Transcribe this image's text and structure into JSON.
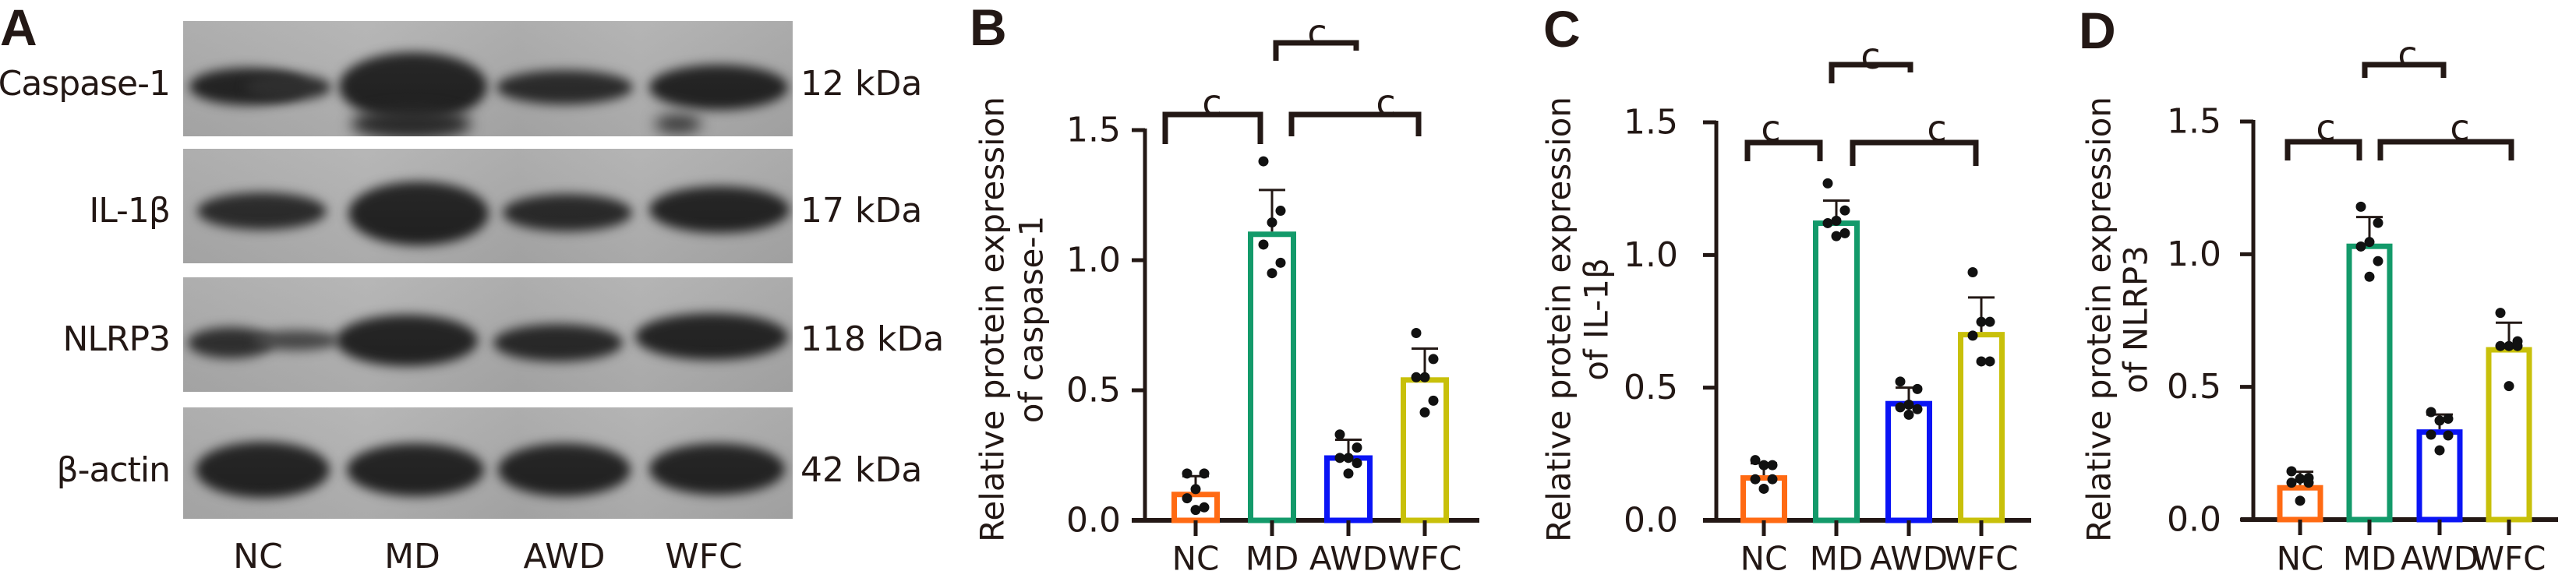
{
  "panel_a": {
    "letter": "A",
    "rows": [
      {
        "protein": "Caspase-1",
        "mw": "12 kDa"
      },
      {
        "protein": "IL-1β",
        "mw": "17 kDa"
      },
      {
        "protein": "NLRP3",
        "mw": "118 kDa"
      },
      {
        "protein": "β-actin",
        "mw": "42 kDa"
      }
    ],
    "lanes": [
      "NC",
      "MD",
      "AWD",
      "WFC"
    ]
  },
  "colors": {
    "NC": "#ff6a13",
    "MD": "#139a6a",
    "AWD": "#0a14f5",
    "WFC": "#c8c00a",
    "ink": "#231815"
  },
  "chart_data": [
    {
      "panel": "B",
      "type": "bar",
      "title": "",
      "xlabel": "",
      "ylabel": [
        "Relative protein expression",
        "of caspase-1"
      ],
      "categories": [
        "NC",
        "MD",
        "AWD",
        "WFC"
      ],
      "values": [
        0.11,
        1.11,
        0.25,
        0.55
      ],
      "error_sd": [
        0.06,
        0.16,
        0.06,
        0.11
      ],
      "points": [
        [
          0.18,
          0.18,
          0.12,
          0.085,
          0.05,
          0.04
        ],
        [
          1.38,
          1.19,
          1.145,
          1.06,
          0.99,
          0.95
        ],
        [
          0.33,
          0.28,
          0.24,
          0.24,
          0.22,
          0.18
        ],
        [
          0.72,
          0.62,
          0.55,
          0.55,
          0.46,
          0.415
        ]
      ],
      "ylim": [
        0,
        1.5
      ],
      "yticks": [
        "0.0",
        "0.5",
        "1.0",
        "1.5"
      ],
      "ytick_values": [
        0,
        0.5,
        1.0,
        1.5
      ],
      "significance": [
        {
          "from": "NC",
          "to": "MD",
          "label": "c"
        },
        {
          "from": "MD",
          "to": "AWD",
          "label": "c"
        },
        {
          "from": "MD",
          "to": "WFC",
          "label": "c"
        }
      ]
    },
    {
      "panel": "C",
      "type": "bar",
      "title": "",
      "xlabel": "",
      "ylabel": [
        "Relative protein expression",
        "of IL-1β"
      ],
      "categories": [
        "NC",
        "MD",
        "AWD",
        "WFC"
      ],
      "values": [
        0.17,
        1.13,
        0.45,
        0.71
      ],
      "error_sd": [
        0.045,
        0.075,
        0.05,
        0.13
      ],
      "points": [
        [
          0.227,
          0.208,
          0.208,
          0.155,
          0.155,
          0.119
        ],
        [
          1.27,
          1.168,
          1.129,
          1.12,
          1.082,
          1.071
        ],
        [
          0.523,
          0.495,
          0.436,
          0.426,
          0.419,
          0.398
        ],
        [
          0.935,
          0.748,
          0.748,
          0.696,
          0.599,
          0.599
        ]
      ],
      "ylim": [
        0,
        1.5
      ],
      "yticks": [
        "0.0",
        "0.5",
        "1.0",
        "1.5"
      ],
      "ytick_values": [
        0,
        0.5,
        1.0,
        1.5
      ],
      "significance": [
        {
          "from": "NC",
          "to": "MD",
          "label": "c"
        },
        {
          "from": "MD",
          "to": "AWD",
          "label": "c"
        },
        {
          "from": "MD",
          "to": "WFC",
          "label": "c"
        }
      ]
    },
    {
      "panel": "D",
      "type": "bar",
      "title": "",
      "xlabel": "",
      "ylabel": [
        "Relative protein expression",
        "of NLRP3"
      ],
      "categories": [
        "NC",
        "MD",
        "AWD",
        "WFC"
      ],
      "values": [
        0.13,
        1.04,
        0.34,
        0.65
      ],
      "error_sd": [
        0.05,
        0.1,
        0.056,
        0.092
      ],
      "points": [
        [
          0.182,
          0.157,
          0.154,
          0.139,
          0.139,
          0.071
        ],
        [
          1.179,
          1.118,
          1.046,
          1.029,
          0.974,
          0.915
        ],
        [
          0.405,
          0.38,
          0.373,
          0.32,
          0.317,
          0.261
        ],
        [
          0.779,
          0.672,
          0.654,
          0.654,
          0.654,
          0.503
        ]
      ],
      "ylim": [
        0,
        1.5
      ],
      "yticks": [
        "0.0",
        "0.5",
        "1.0",
        "1.5"
      ],
      "ytick_values": [
        0,
        0.5,
        1.0,
        1.5
      ],
      "significance": [
        {
          "from": "NC",
          "to": "MD",
          "label": "c"
        },
        {
          "from": "MD",
          "to": "AWD",
          "label": "c"
        },
        {
          "from": "MD",
          "to": "WFC",
          "label": "c"
        }
      ]
    }
  ]
}
